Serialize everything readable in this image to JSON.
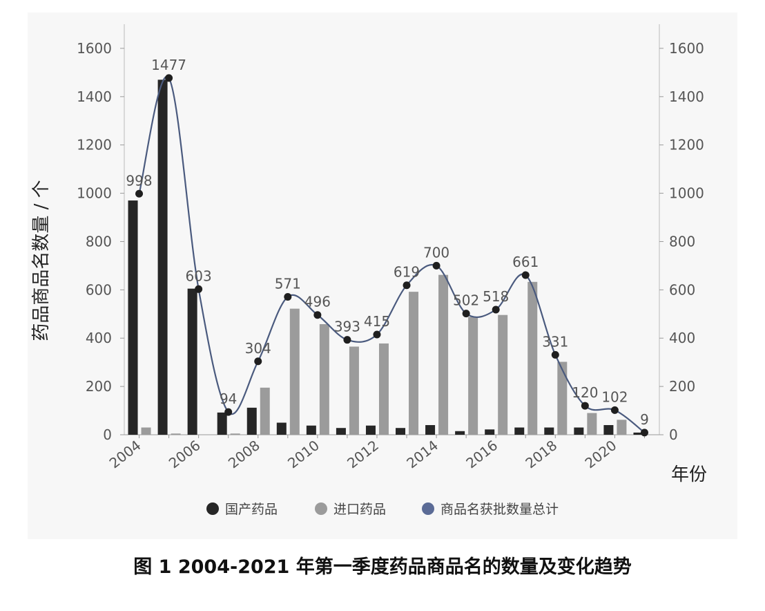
{
  "caption": "图 1   2004-2021 年第一季度药品商品名的数量及变化趋势",
  "chart_data": {
    "type": "bar",
    "title": "",
    "ylabel": "药品商品名数量 / 个",
    "xlabel": "年份",
    "ylim": [
      0,
      1700
    ],
    "yticks": [
      0,
      200,
      400,
      600,
      800,
      1000,
      1200,
      1400,
      1600
    ],
    "x": [
      2004,
      2005,
      2006,
      2007,
      2008,
      2009,
      2010,
      2011,
      2012,
      2013,
      2014,
      2015,
      2016,
      2017,
      2018,
      2019,
      2020,
      2021
    ],
    "xtick_labels": [
      "2004",
      "2006",
      "2008",
      "2010",
      "2012",
      "2014",
      "2016",
      "2018",
      "2020"
    ],
    "legend_position": "bottom",
    "series": [
      {
        "name": "国产药品",
        "kind": "bar",
        "color": "#262626",
        "values": [
          970,
          1470,
          605,
          92,
          112,
          50,
          38,
          28,
          38,
          28,
          40,
          15,
          22,
          30,
          30,
          30,
          40,
          9
        ]
      },
      {
        "name": "进口药品",
        "kind": "bar",
        "color": "#9b9b9b",
        "values": [
          30,
          5,
          0,
          5,
          195,
          522,
          458,
          365,
          378,
          592,
          662,
          488,
          496,
          633,
          302,
          90,
          62,
          0
        ]
      },
      {
        "name": "商品名获批数量总计",
        "kind": "line",
        "color": "#4a5a7e",
        "values": [
          998,
          1477,
          603,
          94,
          304,
          571,
          496,
          393,
          415,
          619,
          700,
          502,
          518,
          661,
          331,
          120,
          102,
          9
        ]
      }
    ]
  }
}
